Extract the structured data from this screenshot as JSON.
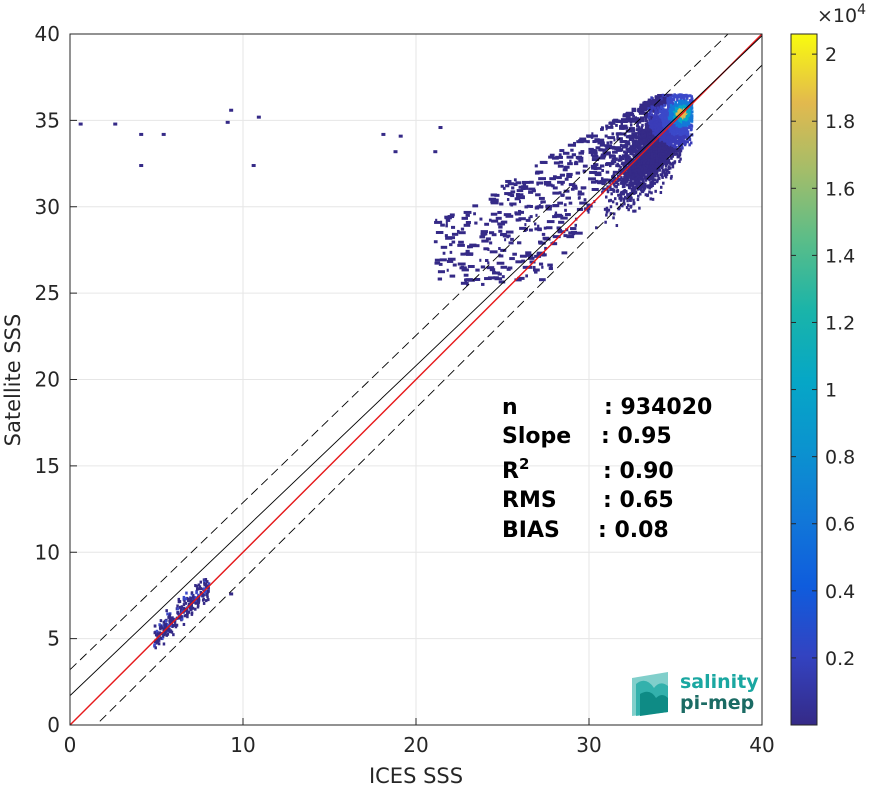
{
  "chart_data": {
    "type": "heatmap",
    "title": "",
    "xlabel": "ICES SSS",
    "ylabel": "Satellite SSS",
    "xlim": [
      0,
      40
    ],
    "ylim": [
      0,
      40
    ],
    "xticks": [
      "0",
      "10",
      "20",
      "30",
      "40"
    ],
    "yticks": [
      "0",
      "5",
      "10",
      "15",
      "20",
      "25",
      "30",
      "35",
      "40"
    ],
    "grid": true,
    "colorbar": {
      "colormap": "parula",
      "range": [
        0,
        20600
      ],
      "exponent_label": "×10",
      "exponent_power": "4",
      "ticks": [
        {
          "value": 2000,
          "label": "0.2"
        },
        {
          "value": 4000,
          "label": "0.4"
        },
        {
          "value": 6000,
          "label": "0.6"
        },
        {
          "value": 8000,
          "label": "0.8"
        },
        {
          "value": 10000,
          "label": "1"
        },
        {
          "value": 12000,
          "label": "1.2"
        },
        {
          "value": 14000,
          "label": "1.4"
        },
        {
          "value": 16000,
          "label": "1.6"
        },
        {
          "value": 18000,
          "label": "1.8"
        },
        {
          "value": 20000,
          "label": "2"
        }
      ]
    },
    "lines": [
      {
        "name": "one-to-one",
        "x": [
          0,
          40
        ],
        "y": [
          0,
          40
        ],
        "color": "#000000",
        "style": "solid"
      },
      {
        "name": "regression",
        "x": [
          0,
          40
        ],
        "y": [
          0,
          40
        ],
        "color": "#e8191b",
        "style": "solid"
      },
      {
        "name": "upper-envelope",
        "x": [
          0,
          40
        ],
        "y": [
          3.2,
          41.9
        ],
        "color": "#000000",
        "style": "dashed"
      },
      {
        "name": "lower-envelope",
        "x": [
          0,
          40
        ],
        "y": [
          -1.5,
          38.2
        ],
        "color": "#000000",
        "style": "dashed"
      },
      {
        "name": "fit-line",
        "x": [
          0,
          40
        ],
        "y": [
          1.7,
          39.9
        ],
        "color": "#000000",
        "style": "solid"
      }
    ],
    "clusters": [
      {
        "x": [
          4,
          9
        ],
        "y": [
          4.8,
          8.6
        ],
        "density": "low"
      },
      {
        "x": [
          21,
          36
        ],
        "y": [
          25,
          37
        ],
        "density": "high",
        "peak": [
          35.3,
          35.3
        ]
      }
    ],
    "stats": [
      {
        "label": "n",
        "value": ": 934020"
      },
      {
        "label": "Slope",
        "value": ": 0.95"
      },
      {
        "label": "R",
        "sup": "2",
        "value": ": 0.90"
      },
      {
        "label": "RMS",
        "value": ": 0.65"
      },
      {
        "label": "BIAS",
        "value": ": 0.08"
      }
    ]
  },
  "logo": {
    "line1": "salinity",
    "line2": "pi-mep",
    "color1": "#1aa7a1",
    "color2": "#1b6b64"
  }
}
